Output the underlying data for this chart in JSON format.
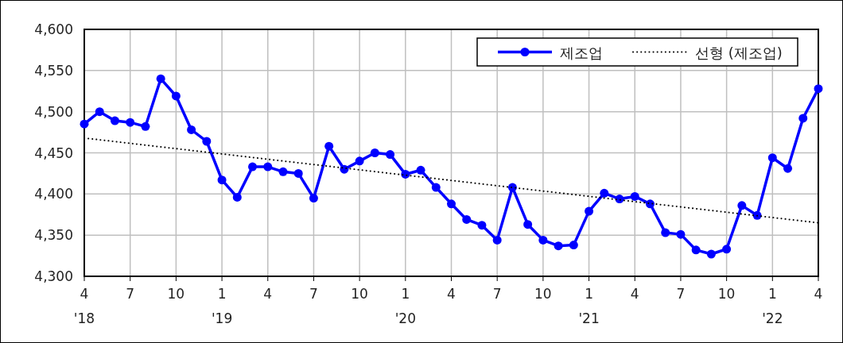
{
  "chart_data": {
    "type": "line",
    "x": [
      "2018-04",
      "2018-05",
      "2018-06",
      "2018-07",
      "2018-08",
      "2018-09",
      "2018-10",
      "2018-11",
      "2018-12",
      "2019-01",
      "2019-02",
      "2019-03",
      "2019-04",
      "2019-05",
      "2019-06",
      "2019-07",
      "2019-08",
      "2019-09",
      "2019-10",
      "2019-11",
      "2019-12",
      "2020-01",
      "2020-02",
      "2020-03",
      "2020-04",
      "2020-05",
      "2020-06",
      "2020-07",
      "2020-08",
      "2020-09",
      "2020-10",
      "2020-11",
      "2020-12",
      "2021-01",
      "2021-02",
      "2021-03",
      "2021-04",
      "2021-05",
      "2021-06",
      "2021-07",
      "2021-08",
      "2021-09",
      "2021-10",
      "2021-11",
      "2021-12",
      "2022-01",
      "2022-02",
      "2022-03",
      "2022-04"
    ],
    "series": [
      {
        "name": "제조업",
        "color": "#0000ff",
        "marker": "circle",
        "line_style": "solid",
        "values": [
          4485,
          4500,
          4489,
          4487,
          4482,
          4540,
          4519,
          4478,
          4464,
          4417,
          4396,
          4433,
          4433,
          4427,
          4425,
          4395,
          4458,
          4430,
          4440,
          4450,
          4448,
          4424,
          4429,
          4408,
          4388,
          4369,
          4362,
          4344,
          4408,
          4363,
          4344,
          4337,
          4338,
          4379,
          4401,
          4394,
          4397,
          4388,
          4353,
          4351,
          4332,
          4327,
          4333,
          4386,
          4374,
          4444,
          4431,
          4492,
          4528
        ]
      },
      {
        "name": "선형 (제조업)",
        "color": "#000000",
        "marker": "none",
        "line_style": "dotted",
        "x": [
          "2018-04",
          "2022-04"
        ],
        "values": [
          4468,
          4365
        ]
      }
    ],
    "xlim": [
      "2018-04",
      "2022-04"
    ],
    "xticks": [
      {
        "value": "2018-04",
        "label": "4\n'18"
      },
      {
        "value": "2018-07",
        "label": "7"
      },
      {
        "value": "2018-10",
        "label": "10"
      },
      {
        "value": "2019-01",
        "label": "1\n'19"
      },
      {
        "value": "2019-04",
        "label": "4"
      },
      {
        "value": "2019-07",
        "label": "7"
      },
      {
        "value": "2019-10",
        "label": "10"
      },
      {
        "value": "2020-01",
        "label": "1\n'20"
      },
      {
        "value": "2020-04",
        "label": "4"
      },
      {
        "value": "2020-07",
        "label": "7"
      },
      {
        "value": "2020-10",
        "label": "10"
      },
      {
        "value": "2021-01",
        "label": "1\n'21"
      },
      {
        "value": "2021-04",
        "label": "4"
      },
      {
        "value": "2021-07",
        "label": "7"
      },
      {
        "value": "2021-10",
        "label": "10"
      },
      {
        "value": "2022-01",
        "label": "1\n'22"
      },
      {
        "value": "2022-04",
        "label": "4"
      }
    ],
    "ylim": [
      4300,
      4600
    ],
    "yticks": [
      {
        "value": 4300,
        "label": "4,300"
      },
      {
        "value": 4350,
        "label": "4,350"
      },
      {
        "value": 4400,
        "label": "4,400"
      },
      {
        "value": 4450,
        "label": "4,450"
      },
      {
        "value": 4500,
        "label": "4,500"
      },
      {
        "value": 4550,
        "label": "4,550"
      },
      {
        "value": 4600,
        "label": "4,600"
      }
    ],
    "grid": true,
    "legend": "top right"
  }
}
